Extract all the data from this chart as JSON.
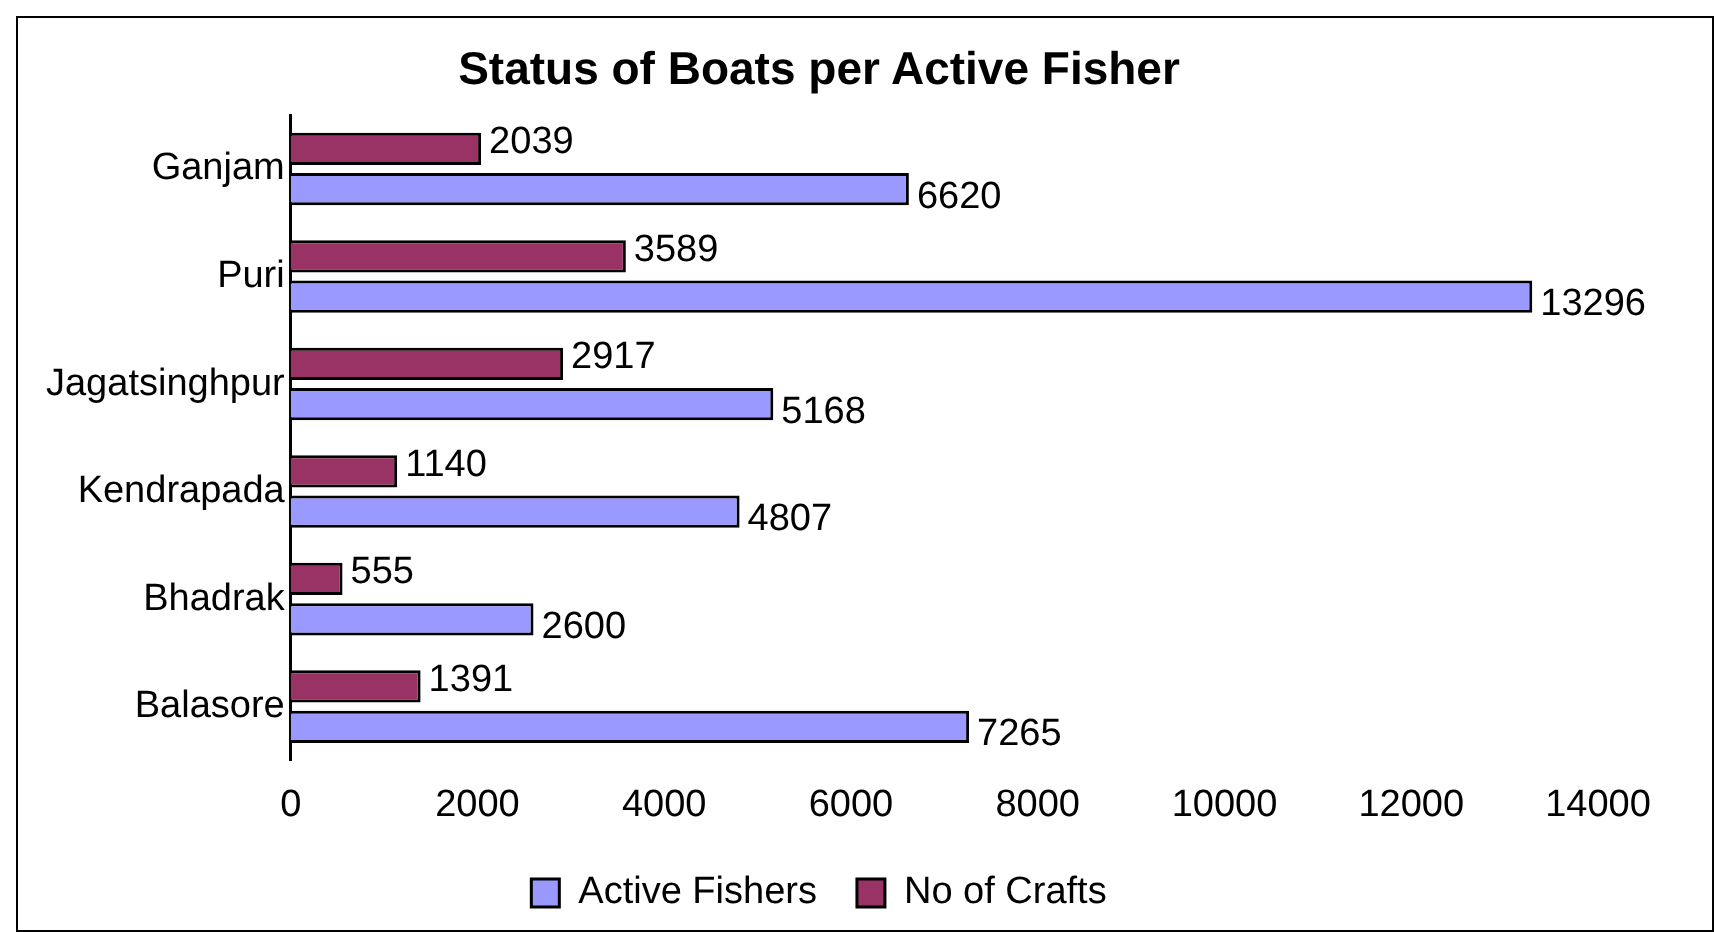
{
  "chart_data": {
    "type": "bar",
    "orientation": "horizontal",
    "title": "Status of Boats per Active Fisher",
    "categories": [
      "Ganjam",
      "Puri",
      "Jagatsinghpur",
      "Kendrapada",
      "Bhadrak",
      "Balasore"
    ],
    "series": [
      {
        "name": "No of Crafts",
        "color": "#993366",
        "values": [
          2039,
          3589,
          2917,
          1140,
          555,
          1391
        ]
      },
      {
        "name": "Active Fishers",
        "color": "#9999ff",
        "values": [
          6620,
          13296,
          5168,
          4807,
          2600,
          7265
        ]
      }
    ],
    "xlim": [
      0,
      14000
    ],
    "xticks": [
      0,
      2000,
      4000,
      6000,
      8000,
      10000,
      12000,
      14000
    ],
    "grid": false,
    "legend": "bottom",
    "data_labels": true
  }
}
